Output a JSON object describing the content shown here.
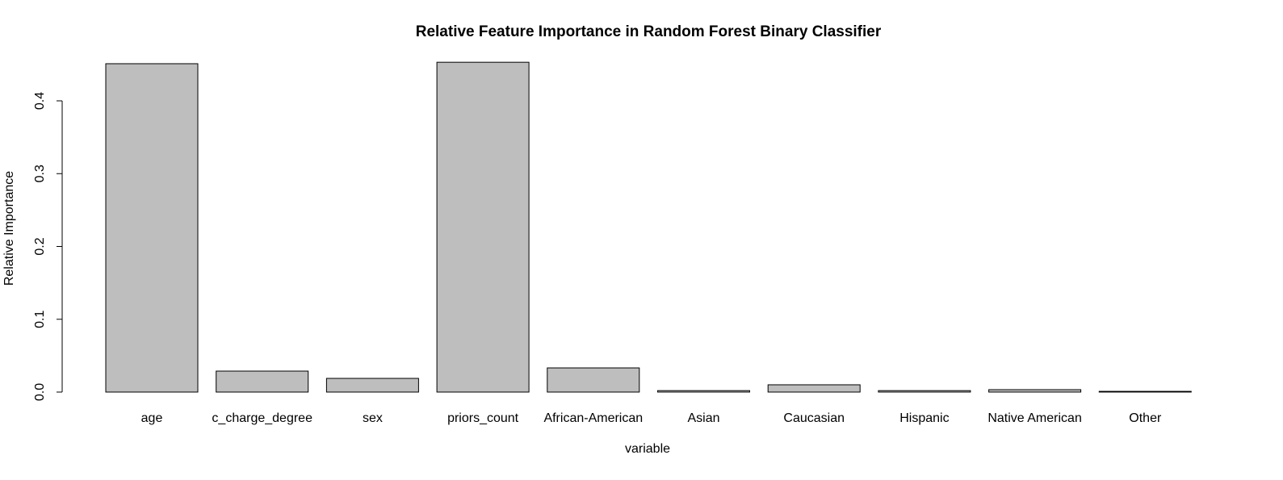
{
  "chart_data": {
    "type": "bar",
    "title": "Relative Feature Importance in Random Forest Binary Classifier",
    "x_label": "variable",
    "y_label": "Relative Importance",
    "categories": [
      "age",
      "c_charge_degree",
      "sex",
      "priors_count",
      "African-American",
      "Asian",
      "Caucasian",
      "Hispanic",
      "Native American",
      "Other"
    ],
    "values": [
      0.451,
      0.0288,
      0.0188,
      0.453,
      0.0332,
      0.002,
      0.01,
      0.002,
      0.0033,
      0.001
    ],
    "color": "#bebebe",
    "ylim": [
      0,
      0.46
    ],
    "yticks": [
      {
        "value": 0,
        "label": "0.0"
      },
      {
        "value": 0.1,
        "label": "0.1"
      },
      {
        "value": 0.2,
        "label": "0.2"
      },
      {
        "value": 0.3,
        "label": "0.3"
      },
      {
        "value": 0.4,
        "label": "0.4"
      }
    ],
    "grid": false
  }
}
